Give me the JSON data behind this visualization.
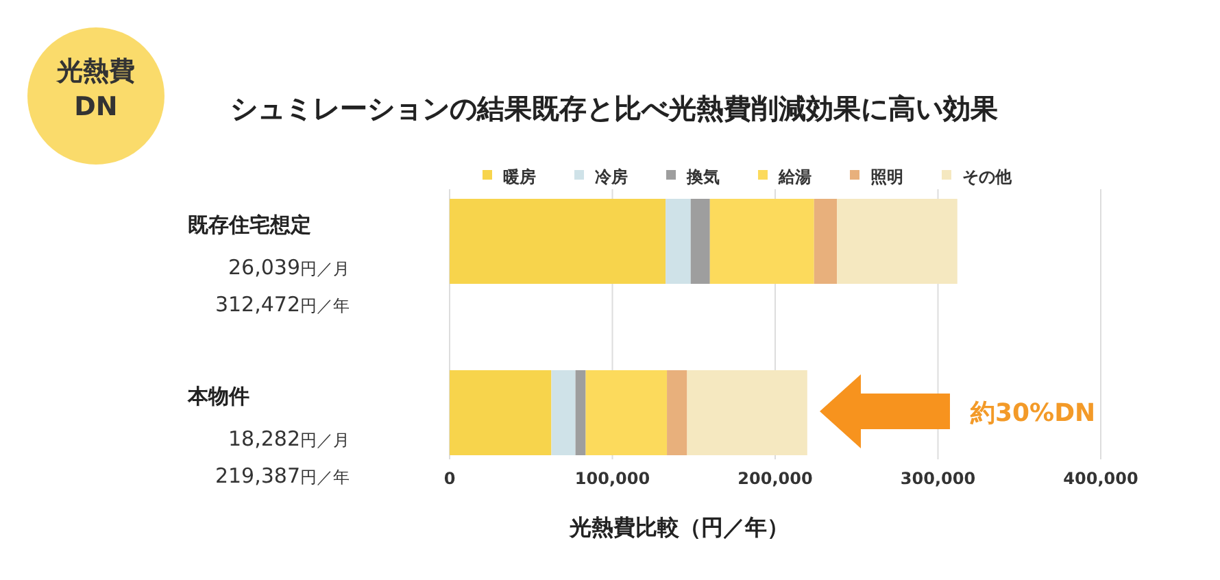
{
  "chart_data": {
    "type": "bar",
    "orientation": "horizontal",
    "stacked": true,
    "title": "シュミレーションの結果既存と比べ光熱費削減効果に高い効果",
    "xlabel": "光熱費比較（円／年）",
    "categories": [
      "既存住宅想定",
      "本物件"
    ],
    "series": [
      {
        "name": "暖房",
        "color": "#f7d44c",
        "values": [
          132700,
          62500
        ]
      },
      {
        "name": "冷房",
        "color": "#cfe2e8",
        "values": [
          15400,
          14800
        ]
      },
      {
        "name": "換気",
        "color": "#9e9e9e",
        "values": [
          11800,
          6300
        ]
      },
      {
        "name": "給湯",
        "color": "#fcda5c",
        "values": [
          64000,
          49900
        ]
      },
      {
        "name": "照明",
        "color": "#e8b07c",
        "values": [
          14100,
          12400
        ]
      },
      {
        "name": "その他",
        "color": "#f5e8c0",
        "values": [
          73900,
          73800
        ]
      }
    ],
    "xlim": [
      0,
      400000
    ],
    "xticks": [
      0,
      {
        "value": 100000,
        "label": "100,000"
      },
      {
        "value": 200000,
        "label": "200,000"
      },
      {
        "value": 300000,
        "label": "300,000"
      },
      {
        "value": 400000,
        "label": "400,000"
      }
    ],
    "grid": "x",
    "legend": "top",
    "annotations": [
      "光熱費\nDN",
      "26,039円／月",
      "312,472円／年",
      "18,282円／月",
      "219,387円／年",
      "約30%DN"
    ]
  }
}
